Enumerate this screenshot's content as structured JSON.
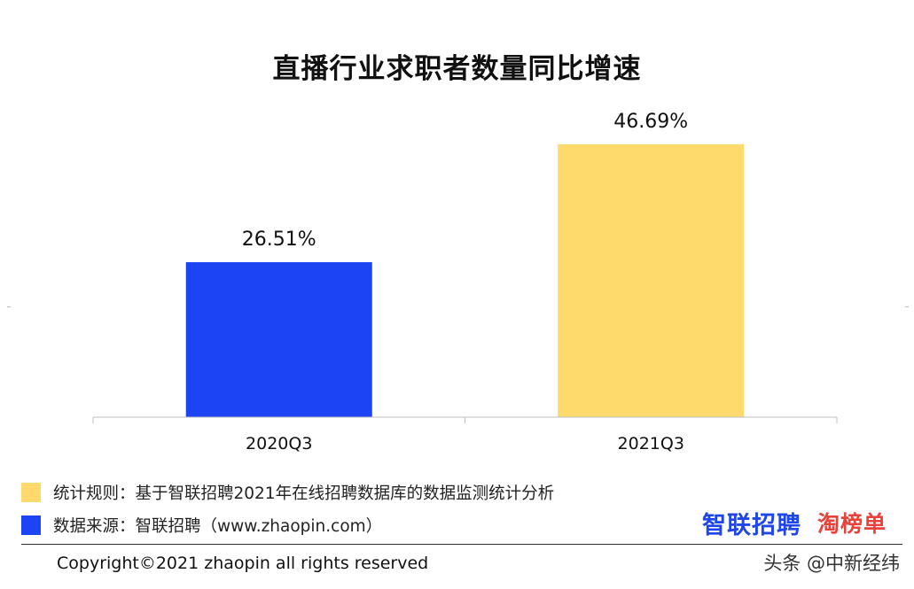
{
  "chart_data": {
    "type": "bar",
    "title": "直播行业求职者数量同比增速",
    "categories": [
      "2020Q3",
      "2021Q3"
    ],
    "values": [
      26.51,
      46.69
    ],
    "data_labels": [
      "26.51%",
      "46.69%"
    ],
    "colors": [
      "#1c44f2",
      "#fed96b"
    ],
    "ylim": [
      0,
      50
    ],
    "grid": false,
    "legend_position": "bottom-left"
  },
  "legend": {
    "items": [
      {
        "label": "统计规则：基于智联招聘2021年在线招聘数据库的数据监测统计分析",
        "color": "#fed96b"
      },
      {
        "label": "数据来源：智联招聘（www.zhaopin.com）",
        "color": "#1c44f2"
      }
    ]
  },
  "logos": {
    "zhaopin": "智联招聘",
    "taobangdan": "淘榜单"
  },
  "footer": {
    "copyright": "Copyright©2021 zhaopin all rights reserved"
  },
  "watermark": "头条 @中新经纬"
}
